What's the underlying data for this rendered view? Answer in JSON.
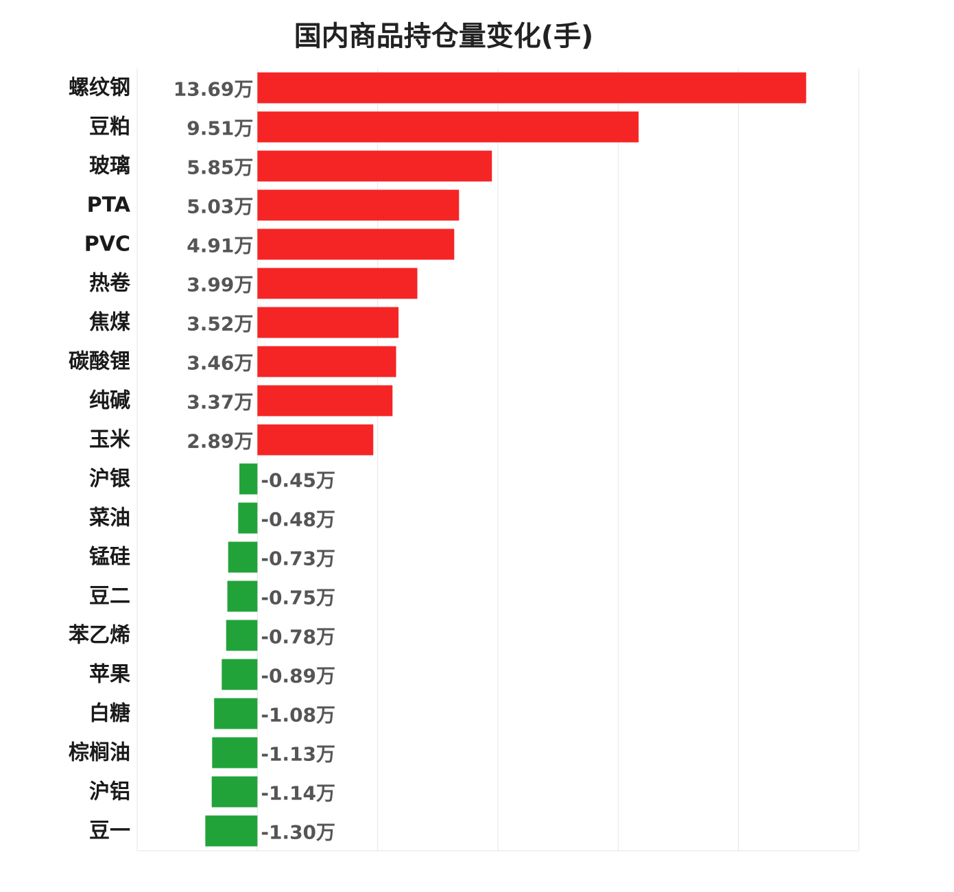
{
  "chart_data": {
    "type": "bar",
    "orientation": "horizontal",
    "title": "国内商品持仓量变化(手)",
    "categories": [
      "螺纹钢",
      "豆粕",
      "玻璃",
      "PTA",
      "PVC",
      "热卷",
      "焦煤",
      "碳酸锂",
      "纯碱",
      "玉米",
      "沪银",
      "菜油",
      "锰硅",
      "豆二",
      "苯乙烯",
      "苹果",
      "白糖",
      "棕榈油",
      "沪铝",
      "豆一"
    ],
    "values": [
      13.69,
      9.51,
      5.85,
      5.03,
      4.91,
      3.99,
      3.52,
      3.46,
      3.37,
      2.89,
      -0.45,
      -0.48,
      -0.73,
      -0.75,
      -0.78,
      -0.89,
      -1.08,
      -1.13,
      -1.14,
      -1.3
    ],
    "value_labels": [
      "13.69万",
      "9.51万",
      "5.85万",
      "5.03万",
      "4.91万",
      "3.99万",
      "3.52万",
      "3.46万",
      "3.37万",
      "2.89万",
      "-0.45万",
      "-0.48万",
      "-0.73万",
      "-0.75万",
      "-0.78万",
      "-0.89万",
      "-1.08万",
      "-1.13万",
      "-1.14万",
      "-1.30万"
    ],
    "unit": "万",
    "xlim": [
      -3,
      15
    ],
    "grid": true,
    "colors": {
      "positive": "#f52525",
      "negative": "#22a33a"
    }
  }
}
